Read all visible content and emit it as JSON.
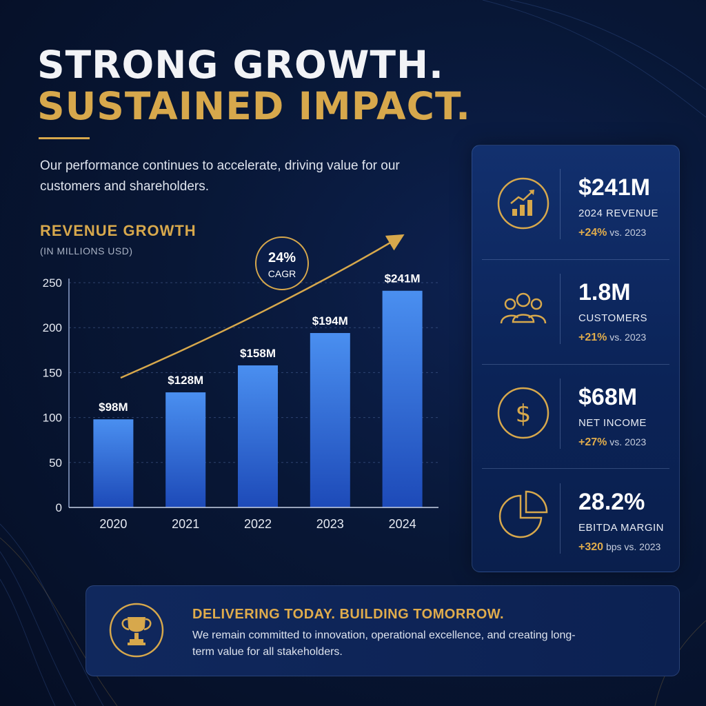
{
  "headline": {
    "line1": "STRONG GROWTH.",
    "line2": "SUSTAINED IMPACT."
  },
  "intro": "Our performance continues to accelerate, driving value for our customers and shareholders.",
  "colors": {
    "gold": "#d7a84c",
    "bar_top": "#4a8ff0",
    "bar_bottom": "#1d4ab8",
    "background": "#081736"
  },
  "chart_data": {
    "type": "bar",
    "title": "REVENUE GROWTH",
    "subtitle": "(IN MILLIONS USD)",
    "categories": [
      "2020",
      "2021",
      "2022",
      "2023",
      "2024"
    ],
    "values": [
      98,
      128,
      158,
      194,
      241
    ],
    "data_labels": [
      "$98M",
      "$128M",
      "$158M",
      "$194M",
      "$241M"
    ],
    "yticks": [
      0,
      50,
      100,
      150,
      200,
      250
    ],
    "ylim": [
      0,
      250
    ],
    "grid": true,
    "annotation": {
      "value": "24%",
      "label": "CAGR"
    }
  },
  "kpis": [
    {
      "icon": "growth-chart-icon",
      "value": "$241M",
      "label": "2024 REVENUE",
      "change": "+24%",
      "change_suffix": "vs. 2023"
    },
    {
      "icon": "customers-icon",
      "value": "1.8M",
      "label": "CUSTOMERS",
      "change": "+21%",
      "change_suffix": "vs. 2023"
    },
    {
      "icon": "dollar-icon",
      "value": "$68M",
      "label": "NET INCOME",
      "change": "+27%",
      "change_suffix": "vs. 2023"
    },
    {
      "icon": "pie-chart-icon",
      "value": "28.2%",
      "label": "EBITDA MARGIN",
      "change": "+320",
      "change_suffix": "bps vs. 2023"
    }
  ],
  "banner": {
    "icon": "trophy-icon",
    "title": "DELIVERING TODAY. BUILDING TOMORROW.",
    "text": "We remain committed to innovation, operational excellence, and creating long-term value for all stakeholders."
  }
}
